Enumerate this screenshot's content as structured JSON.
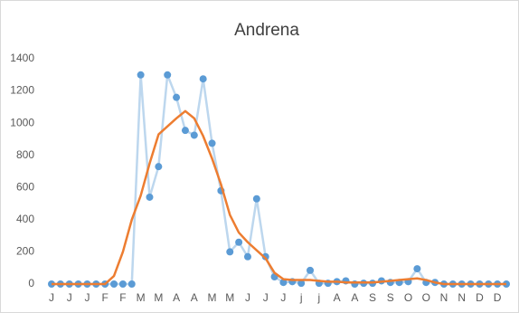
{
  "chart_data": {
    "type": "line",
    "title": "Andrena",
    "categories": [
      "J",
      null,
      "J",
      null,
      "J",
      null,
      "F",
      null,
      "F",
      null,
      "M",
      null,
      "M",
      null,
      "A",
      null,
      "A",
      null,
      "M",
      null,
      "M",
      null,
      "J",
      null,
      "J",
      null,
      "J",
      null,
      "j",
      null,
      "j",
      null,
      "A",
      null,
      "A",
      null,
      "S",
      null,
      "S",
      null,
      "O",
      null,
      "O",
      null,
      "N",
      null,
      "N",
      null,
      "D",
      null,
      "D",
      null
    ],
    "series": [
      {
        "color": "#5b9bd5",
        "line_color": "#bdd7ee",
        "markers": true,
        "values": [
          0,
          0,
          0,
          0,
          0,
          0,
          0,
          0,
          0,
          0,
          1300,
          540,
          730,
          1300,
          1160,
          955,
          925,
          1275,
          875,
          580,
          200,
          260,
          170,
          530,
          170,
          45,
          10,
          15,
          5,
          85,
          5,
          5,
          15,
          20,
          0,
          5,
          5,
          20,
          10,
          10,
          15,
          95,
          10,
          10,
          0,
          0,
          0,
          0,
          0,
          0,
          0,
          0
        ]
      },
      {
        "color": "#ed7d31",
        "line_color": "#ed7d31",
        "markers": false,
        "values": [
          0,
          0,
          0,
          0,
          0,
          0,
          0,
          50,
          200,
          400,
          550,
          750,
          930,
          980,
          1030,
          1075,
          1030,
          920,
          780,
          620,
          430,
          320,
          260,
          210,
          160,
          70,
          30,
          25,
          25,
          25,
          20,
          15,
          15,
          10,
          10,
          10,
          10,
          15,
          20,
          25,
          30,
          35,
          25,
          10,
          0,
          0,
          0,
          0,
          0,
          0,
          0,
          0
        ]
      }
    ],
    "ylim": [
      0,
      1400
    ],
    "yticks": [
      0,
      200,
      400,
      600,
      800,
      1000,
      1200,
      1400
    ],
    "grid": false
  }
}
